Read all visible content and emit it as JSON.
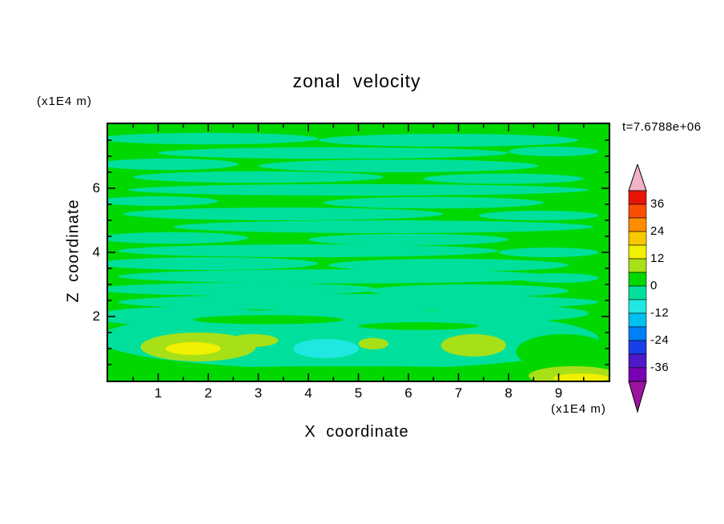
{
  "title": "zonal velocity",
  "time_label": "t=7.6788e+06",
  "x_axis": {
    "label": "X coordinate",
    "unit": "(x1E4 m)",
    "range": [
      0,
      10
    ],
    "major_ticks": [
      1,
      2,
      3,
      4,
      5,
      6,
      7,
      8,
      9
    ],
    "minor_step": 0.5
  },
  "y_axis": {
    "label": "Z coordinate",
    "unit": "(x1E4 m)",
    "range": [
      0,
      8
    ],
    "major_ticks": [
      2,
      4,
      6
    ],
    "minor_step": 0.5
  },
  "colorbar": {
    "labels": [
      "36",
      "24",
      "12",
      "0",
      "-12",
      "-24",
      "-36"
    ],
    "value_top": 42,
    "value_step": 6,
    "segment_colors_top_to_bottom": [
      "#e81408",
      "#fa4e00",
      "#ff8c00",
      "#f8c800",
      "#f0f000",
      "#a8e018",
      "#00d800",
      "#00e09c",
      "#20e8e0",
      "#00c0f0",
      "#0080f8",
      "#1840e8",
      "#5018c8",
      "#7a00b4"
    ],
    "above_range_color": "#f2b4c4",
    "below_range_color": "#9c14a0"
  },
  "chart_data": {
    "type": "heatmap",
    "title": "zonal velocity",
    "xlabel": "X coordinate (x1E4 m)",
    "ylabel": "Z coordinate (x1E4 m)",
    "time": "t=7.6788e+06",
    "x_range": [
      0,
      10
    ],
    "y_range": [
      0,
      8
    ],
    "contour_levels": [
      -36,
      -24,
      -12,
      0,
      12,
      24,
      36
    ],
    "value_units": "velocity (contour bands of 6)",
    "background_value": 3,
    "features": [
      {
        "x": 2.0,
        "y": 7.55,
        "rx": 2.2,
        "ry": 0.18,
        "v": -3
      },
      {
        "x": 6.8,
        "y": 7.5,
        "rx": 2.6,
        "ry": 0.2,
        "v": -3
      },
      {
        "x": 4.5,
        "y": 7.1,
        "rx": 3.5,
        "ry": 0.18,
        "v": -3
      },
      {
        "x": 8.9,
        "y": 7.15,
        "rx": 0.9,
        "ry": 0.15,
        "v": -3
      },
      {
        "x": 1.2,
        "y": 6.75,
        "rx": 1.4,
        "ry": 0.18,
        "v": -3
      },
      {
        "x": 5.8,
        "y": 6.7,
        "rx": 2.8,
        "ry": 0.2,
        "v": -3
      },
      {
        "x": 3.0,
        "y": 6.35,
        "rx": 2.5,
        "ry": 0.18,
        "v": -3
      },
      {
        "x": 7.9,
        "y": 6.3,
        "rx": 1.6,
        "ry": 0.16,
        "v": -3
      },
      {
        "x": 5.0,
        "y": 5.95,
        "rx": 4.6,
        "ry": 0.18,
        "v": -3
      },
      {
        "x": 1.0,
        "y": 5.6,
        "rx": 1.2,
        "ry": 0.15,
        "v": -3
      },
      {
        "x": 6.5,
        "y": 5.55,
        "rx": 2.2,
        "ry": 0.18,
        "v": -3
      },
      {
        "x": 3.5,
        "y": 5.2,
        "rx": 3.2,
        "ry": 0.2,
        "v": -3
      },
      {
        "x": 8.6,
        "y": 5.15,
        "rx": 1.2,
        "ry": 0.15,
        "v": -3
      },
      {
        "x": 5.5,
        "y": 4.8,
        "rx": 4.2,
        "ry": 0.2,
        "v": -3
      },
      {
        "x": 1.3,
        "y": 4.45,
        "rx": 1.5,
        "ry": 0.18,
        "v": -3
      },
      {
        "x": 6.0,
        "y": 4.4,
        "rx": 2.0,
        "ry": 0.18,
        "v": -3
      },
      {
        "x": 4.0,
        "y": 4.05,
        "rx": 3.8,
        "ry": 0.2,
        "v": -3
      },
      {
        "x": 8.8,
        "y": 4.0,
        "rx": 1.0,
        "ry": 0.15,
        "v": -3
      },
      {
        "x": 2.0,
        "y": 3.65,
        "rx": 2.2,
        "ry": 0.2,
        "v": -3
      },
      {
        "x": 6.8,
        "y": 3.6,
        "rx": 2.4,
        "ry": 0.2,
        "v": -3
      },
      {
        "x": 4.6,
        "y": 3.25,
        "rx": 4.4,
        "ry": 0.22,
        "v": -3
      },
      {
        "x": 9.0,
        "y": 3.2,
        "rx": 0.8,
        "ry": 0.15,
        "v": -3
      },
      {
        "x": 2.6,
        "y": 2.85,
        "rx": 2.8,
        "ry": 0.2,
        "v": -3
      },
      {
        "x": 7.2,
        "y": 2.8,
        "rx": 2.0,
        "ry": 0.2,
        "v": -3
      },
      {
        "x": 5.0,
        "y": 2.45,
        "rx": 4.8,
        "ry": 0.25,
        "v": -3
      },
      {
        "x": 1.5,
        "y": 2.0,
        "rx": 1.8,
        "ry": 0.3,
        "v": -3
      },
      {
        "x": 8.0,
        "y": 2.1,
        "rx": 1.6,
        "ry": 0.25,
        "v": -3
      },
      {
        "x": 4.8,
        "y": 1.3,
        "rx": 5.0,
        "ry": 0.95,
        "v": -3
      },
      {
        "x": 3.2,
        "y": 1.9,
        "rx": 1.5,
        "ry": 0.14,
        "v": 3
      },
      {
        "x": 6.2,
        "y": 1.7,
        "rx": 1.2,
        "ry": 0.12,
        "v": 3
      },
      {
        "x": 4.8,
        "y": 0.15,
        "rx": 5.0,
        "ry": 0.3,
        "v": 3
      },
      {
        "x": 9.1,
        "y": 0.9,
        "rx": 0.95,
        "ry": 0.55,
        "v": 3
      },
      {
        "x": 1.8,
        "y": 1.05,
        "rx": 1.15,
        "ry": 0.45,
        "v": 9
      },
      {
        "x": 2.9,
        "y": 1.25,
        "rx": 0.5,
        "ry": 0.2,
        "v": 9
      },
      {
        "x": 7.3,
        "y": 1.1,
        "rx": 0.65,
        "ry": 0.35,
        "v": 9
      },
      {
        "x": 5.3,
        "y": 1.15,
        "rx": 0.3,
        "ry": 0.18,
        "v": 9
      },
      {
        "x": 9.3,
        "y": 0.15,
        "rx": 0.9,
        "ry": 0.3,
        "v": 9
      },
      {
        "x": 1.7,
        "y": 1.0,
        "rx": 0.55,
        "ry": 0.2,
        "v": 15
      },
      {
        "x": 9.45,
        "y": 0.08,
        "rx": 0.55,
        "ry": 0.14,
        "v": 15
      },
      {
        "x": 4.35,
        "y": 1.0,
        "rx": 0.65,
        "ry": 0.3,
        "v": -9
      }
    ]
  }
}
